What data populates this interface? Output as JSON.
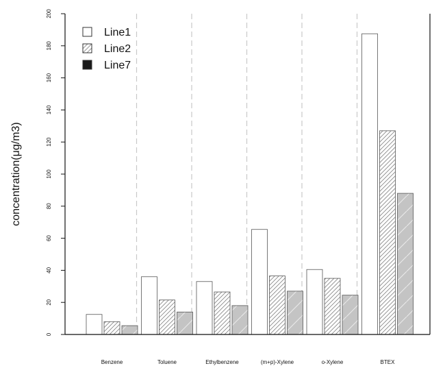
{
  "chart_data": {
    "type": "bar",
    "title": "",
    "xlabel": "",
    "ylabel": "concentration(μg/m3)",
    "ylim": [
      0,
      200
    ],
    "yticks": [
      0,
      20,
      40,
      60,
      80,
      100,
      120,
      140,
      160,
      180,
      200
    ],
    "categories": [
      "Benzene",
      "Toluene",
      "Ethylbenzene",
      "(m+p)-Xylene",
      "o-Xylene",
      "BTEX"
    ],
    "series": [
      {
        "name": "Line1",
        "values": [
          12.5,
          36,
          33,
          65.5,
          40.5,
          187.5
        ],
        "fill": "#ffffff",
        "pattern": "none"
      },
      {
        "name": "Line2",
        "values": [
          8,
          21.5,
          26.5,
          36.5,
          35,
          127
        ],
        "fill": "#ffffff",
        "pattern": "dense-hatch"
      },
      {
        "name": "Line7",
        "values": [
          5.5,
          14,
          18,
          27,
          24.5,
          88
        ],
        "fill": "#c4c4c4",
        "pattern": "sparse-hatch"
      }
    ],
    "legend_position": "top-left",
    "separators": "dashed vertical lines between categories",
    "colors": {
      "bar_stroke": "#555555",
      "hatch": "#888888",
      "gray_fill": "#c4c4c4",
      "separator": "#c8c8c8",
      "axis": "#111111"
    }
  }
}
